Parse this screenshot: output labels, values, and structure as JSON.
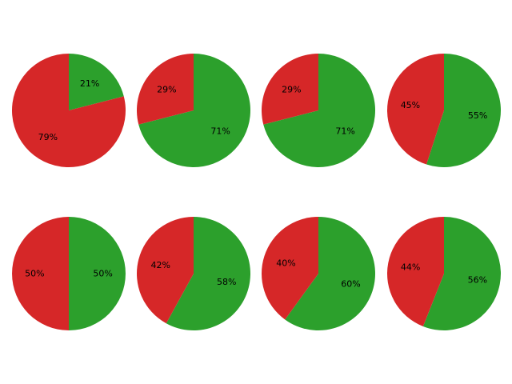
{
  "colors": {
    "green": "#2ca02c",
    "red": "#d62728",
    "background": "#ffffff"
  },
  "chart_data": [
    {
      "type": "pie",
      "slices": [
        {
          "value": 21,
          "label": "21%",
          "color": "green"
        },
        {
          "value": 79,
          "label": "79%",
          "color": "red"
        }
      ]
    },
    {
      "type": "pie",
      "slices": [
        {
          "value": 71,
          "label": "71%",
          "color": "green"
        },
        {
          "value": 29,
          "label": "29%",
          "color": "red"
        }
      ]
    },
    {
      "type": "pie",
      "slices": [
        {
          "value": 71,
          "label": "71%",
          "color": "green"
        },
        {
          "value": 29,
          "label": "29%",
          "color": "red"
        }
      ]
    },
    {
      "type": "pie",
      "slices": [
        {
          "value": 55,
          "label": "55%",
          "color": "green"
        },
        {
          "value": 45,
          "label": "45%",
          "color": "red"
        }
      ]
    },
    {
      "type": "pie",
      "slices": [
        {
          "value": 50,
          "label": "50%",
          "color": "green"
        },
        {
          "value": 50,
          "label": "50%",
          "color": "red"
        }
      ]
    },
    {
      "type": "pie",
      "slices": [
        {
          "value": 58,
          "label": "58%",
          "color": "green"
        },
        {
          "value": 42,
          "label": "42%",
          "color": "red"
        }
      ]
    },
    {
      "type": "pie",
      "slices": [
        {
          "value": 60,
          "label": "60%",
          "color": "green"
        },
        {
          "value": 40,
          "label": "40%",
          "color": "red"
        }
      ]
    },
    {
      "type": "pie",
      "slices": [
        {
          "value": 56,
          "label": "56%",
          "color": "green"
        },
        {
          "value": 44,
          "label": "44%",
          "color": "red"
        }
      ]
    }
  ]
}
